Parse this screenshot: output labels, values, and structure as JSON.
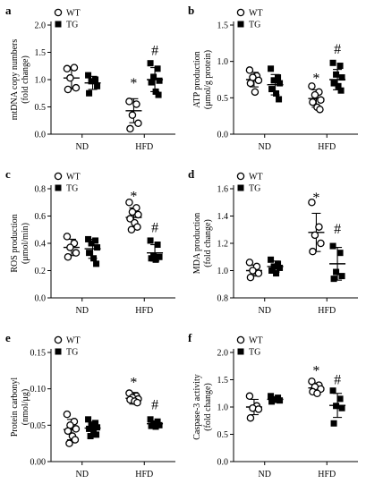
{
  "figure": {
    "style": {
      "ink": "#000000",
      "background": "#ffffff"
    }
  },
  "chart_data": [
    {
      "panel": "a",
      "type": "scatter",
      "ylabel": [
        "mtDNA copy numbers",
        "(fold change)"
      ],
      "categories": [
        "ND",
        "HFD"
      ],
      "legend": "top-left",
      "ylim": [
        0.0,
        2.0
      ],
      "yticks": [
        "0.0",
        "0.5",
        "1.0",
        "1.5",
        "2.0"
      ],
      "series": [
        {
          "name": "WT",
          "marker": "circle-open",
          "ND": {
            "points": [
              1.2,
              1.22,
              1.03,
              0.85,
              0.82
            ],
            "mean": 1.03,
            "sd": 0.2
          },
          "HFD": {
            "points": [
              0.6,
              0.55,
              0.35,
              0.2,
              0.1
            ],
            "mean": 0.43,
            "sd": 0.22
          }
        },
        {
          "name": "TG",
          "marker": "square-filled",
          "ND": {
            "points": [
              1.08,
              1.0,
              0.97,
              0.88,
              0.75
            ],
            "mean": 0.94,
            "sd": 0.12
          },
          "HFD": {
            "points": [
              1.3,
              1.2,
              1.05,
              0.98,
              0.95,
              0.78,
              0.72
            ],
            "mean": 1.0,
            "sd": 0.22
          }
        }
      ],
      "annotations": [
        {
          "text": "*",
          "category": "HFD",
          "series": "WT",
          "y": 0.95
        },
        {
          "text": "#",
          "category": "HFD",
          "series": "TG",
          "y": 1.55
        }
      ]
    },
    {
      "panel": "b",
      "type": "scatter",
      "ylabel": [
        "ATP production",
        "(μmol/g protein)"
      ],
      "categories": [
        "ND",
        "HFD"
      ],
      "legend": "top-left",
      "ylim": [
        0.0,
        1.5
      ],
      "yticks": [
        "0.0",
        "0.5",
        "1.0",
        "1.5"
      ],
      "series": [
        {
          "name": "WT",
          "marker": "circle-open",
          "ND": {
            "points": [
              0.88,
              0.8,
              0.78,
              0.74,
              0.7,
              0.58
            ],
            "mean": 0.75,
            "sd": 0.1
          },
          "HFD": {
            "points": [
              0.66,
              0.58,
              0.54,
              0.47,
              0.44,
              0.37,
              0.34
            ],
            "mean": 0.49,
            "sd": 0.12
          }
        },
        {
          "name": "TG",
          "marker": "square-filled",
          "ND": {
            "points": [
              0.9,
              0.78,
              0.74,
              0.7,
              0.62,
              0.56,
              0.48
            ],
            "mean": 0.68,
            "sd": 0.14
          },
          "HFD": {
            "points": [
              0.98,
              0.94,
              0.82,
              0.78,
              0.7,
              0.66,
              0.6
            ],
            "mean": 0.75,
            "sd": 0.14
          }
        }
      ],
      "annotations": [
        {
          "text": "*",
          "category": "HFD",
          "series": "WT",
          "y": 0.78
        },
        {
          "text": "#",
          "category": "HFD",
          "series": "TG",
          "y": 1.18
        }
      ]
    },
    {
      "panel": "c",
      "type": "scatter",
      "ylabel": [
        "ROS production",
        "(μmol/min)"
      ],
      "categories": [
        "ND",
        "HFD"
      ],
      "legend": "top-left",
      "ylim": [
        0.0,
        0.8
      ],
      "yticks": [
        "0.0",
        "0.2",
        "0.4",
        "0.6",
        "0.8"
      ],
      "series": [
        {
          "name": "WT",
          "marker": "circle-open",
          "ND": {
            "points": [
              0.45,
              0.4,
              0.37,
              0.33,
              0.3
            ],
            "mean": 0.37,
            "sd": 0.06
          },
          "HFD": {
            "points": [
              0.7,
              0.66,
              0.63,
              0.61,
              0.58,
              0.55,
              0.52,
              0.5
            ],
            "mean": 0.59,
            "sd": 0.07
          }
        },
        {
          "name": "TG",
          "marker": "square-filled",
          "ND": {
            "points": [
              0.43,
              0.42,
              0.4,
              0.37,
              0.33,
              0.29,
              0.25
            ],
            "mean": 0.36,
            "sd": 0.07
          },
          "HFD": {
            "points": [
              0.42,
              0.39,
              0.31,
              0.3,
              0.29,
              0.28
            ],
            "mean": 0.33,
            "sd": 0.06
          }
        }
      ],
      "annotations": [
        {
          "text": "*",
          "category": "HFD",
          "series": "WT",
          "y": 0.75
        },
        {
          "text": "#",
          "category": "HFD",
          "series": "TG",
          "y": 0.52
        }
      ]
    },
    {
      "panel": "d",
      "type": "scatter",
      "ylabel": [
        "MDA production",
        "(fold change)"
      ],
      "categories": [
        "ND",
        "HFD"
      ],
      "legend": "top-left",
      "ylim": [
        0.8,
        1.6
      ],
      "yticks": [
        "0.8",
        "1.0",
        "1.2",
        "1.4",
        "1.6"
      ],
      "series": [
        {
          "name": "WT",
          "marker": "circle-open",
          "ND": {
            "points": [
              1.06,
              1.03,
              1.0,
              0.98,
              0.95
            ],
            "mean": 1.0,
            "sd": 0.04
          },
          "HFD": {
            "points": [
              1.5,
              1.32,
              1.26,
              1.2,
              1.14
            ],
            "mean": 1.28,
            "sd": 0.14
          }
        },
        {
          "name": "TG",
          "marker": "square-filled",
          "ND": {
            "points": [
              1.08,
              1.05,
              1.03,
              1.02,
              1.0,
              0.98
            ],
            "mean": 1.03,
            "sd": 0.04
          },
          "HFD": {
            "points": [
              1.18,
              1.13,
              0.99,
              0.96,
              0.94
            ],
            "mean": 1.05,
            "sd": 0.12
          }
        }
      ],
      "annotations": [
        {
          "text": "*",
          "category": "HFD",
          "series": "WT",
          "y": 1.54
        },
        {
          "text": "#",
          "category": "HFD",
          "series": "TG",
          "y": 1.31
        }
      ]
    },
    {
      "panel": "e",
      "type": "scatter",
      "ylabel": [
        "Protein carbonyl",
        "(nmol/μg)"
      ],
      "categories": [
        "ND",
        "HFD"
      ],
      "legend": "top-left",
      "ylim": [
        0.0,
        0.15
      ],
      "yticks": [
        "0.00",
        "0.05",
        "0.10",
        "0.15"
      ],
      "series": [
        {
          "name": "WT",
          "marker": "circle-open",
          "ND": {
            "points": [
              0.065,
              0.055,
              0.05,
              0.045,
              0.042,
              0.035,
              0.03,
              0.025
            ],
            "mean": 0.044,
            "sd": 0.014
          },
          "HFD": {
            "points": [
              0.094,
              0.09,
              0.088,
              0.086,
              0.085,
              0.083,
              0.081
            ],
            "mean": 0.087,
            "sd": 0.008
          }
        },
        {
          "name": "TG",
          "marker": "square-filled",
          "ND": {
            "points": [
              0.058,
              0.053,
              0.05,
              0.047,
              0.045,
              0.042,
              0.037,
              0.035
            ],
            "mean": 0.046,
            "sd": 0.009
          },
          "HFD": {
            "points": [
              0.058,
              0.055,
              0.052,
              0.05,
              0.049,
              0.048
            ],
            "mean": 0.052,
            "sd": 0.004
          }
        }
      ],
      "annotations": [
        {
          "text": "*",
          "category": "HFD",
          "series": "WT",
          "y": 0.11
        },
        {
          "text": "#",
          "category": "HFD",
          "series": "TG",
          "y": 0.079
        }
      ]
    },
    {
      "panel": "f",
      "type": "scatter",
      "ylabel": [
        "Caspase-3 activity",
        "(fold change)"
      ],
      "categories": [
        "ND",
        "HFD"
      ],
      "legend": "top-left",
      "ylim": [
        0.0,
        2.0
      ],
      "yticks": [
        "0.0",
        "0.5",
        "1.0",
        "1.5",
        "2.0"
      ],
      "series": [
        {
          "name": "WT",
          "marker": "circle-open",
          "ND": {
            "points": [
              1.2,
              1.02,
              0.98,
              0.96,
              0.8
            ],
            "mean": 1.0,
            "sd": 0.14
          },
          "HFD": {
            "points": [
              1.47,
              1.4,
              1.37,
              1.33,
              1.28,
              1.25
            ],
            "mean": 1.35,
            "sd": 0.09
          }
        },
        {
          "name": "TG",
          "marker": "square-filled",
          "ND": {
            "points": [
              1.2,
              1.17,
              1.13,
              1.12,
              1.1
            ],
            "mean": 1.14,
            "sd": 0.05
          },
          "HFD": {
            "points": [
              1.3,
              1.15,
              1.02,
              0.98,
              0.7
            ],
            "mean": 1.03,
            "sd": 0.22
          }
        }
      ],
      "annotations": [
        {
          "text": "*",
          "category": "HFD",
          "series": "WT",
          "y": 1.68
        },
        {
          "text": "#",
          "category": "HFD",
          "series": "TG",
          "y": 1.52
        }
      ]
    }
  ]
}
